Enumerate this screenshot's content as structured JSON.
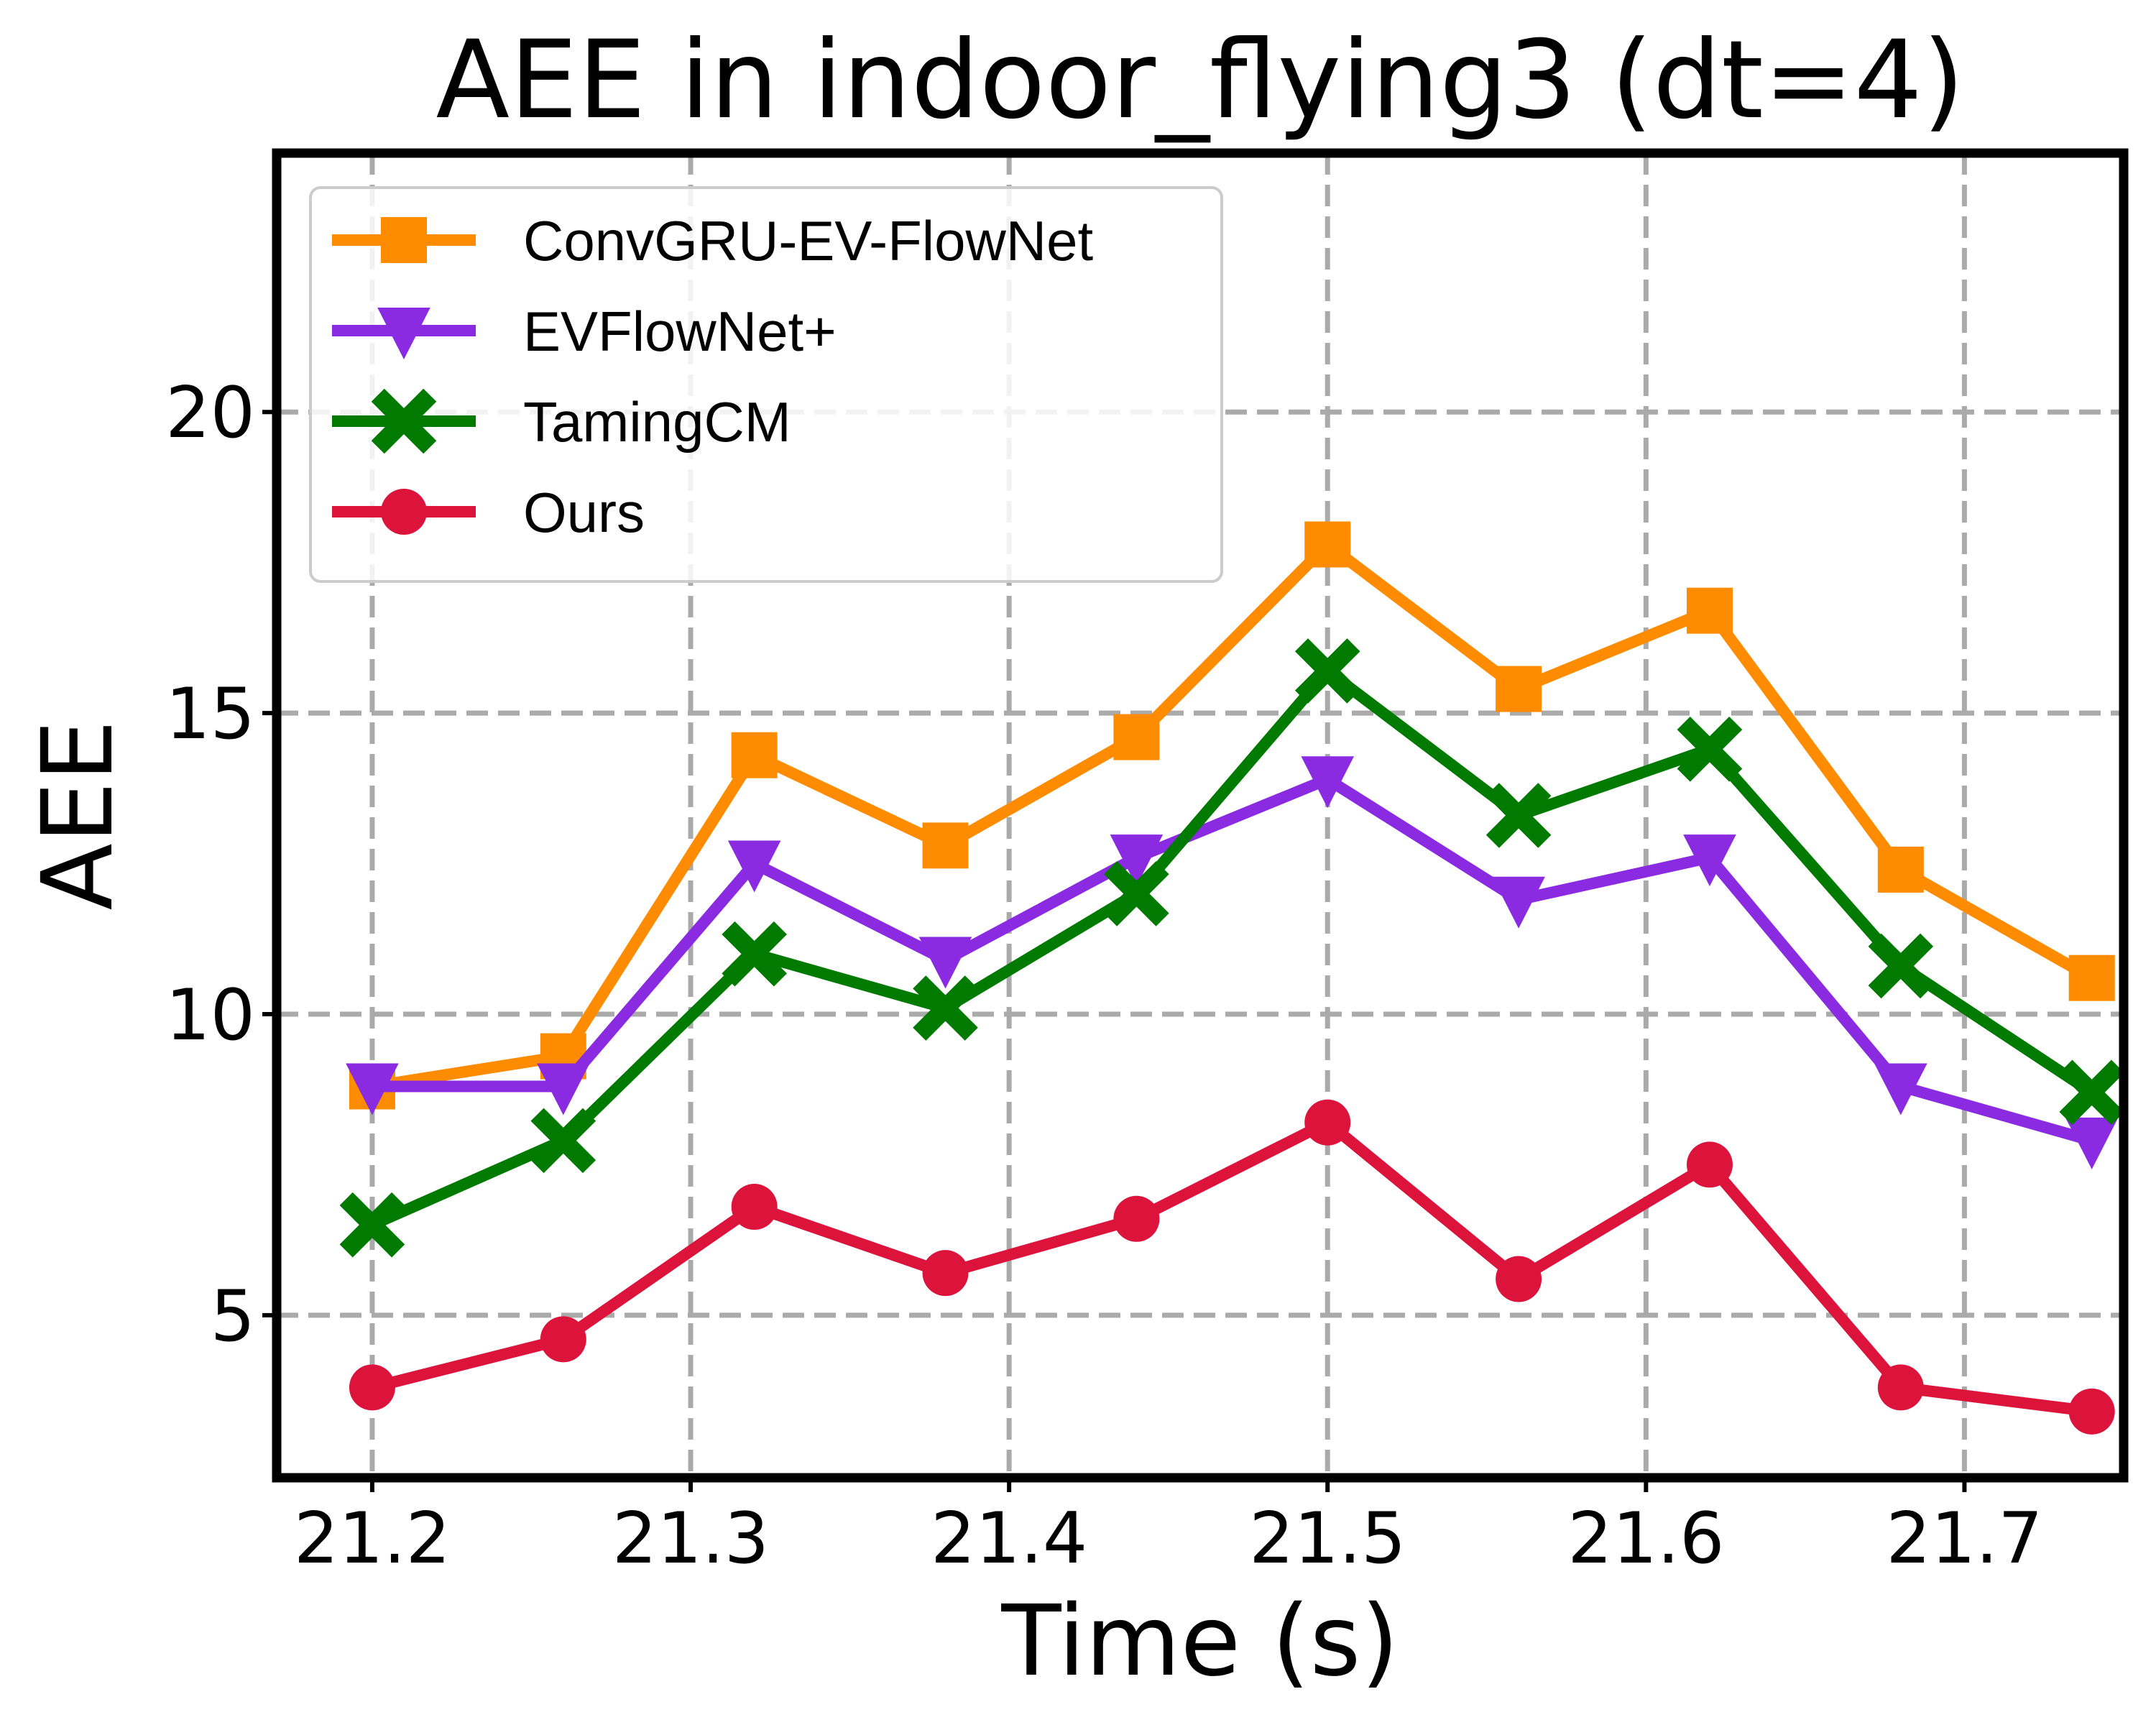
{
  "chart_data": {
    "type": "line",
    "title": "AEE in indoor_flying3 (dt=4)",
    "xlabel": "Time (s)",
    "ylabel": "AEE",
    "xlim": [
      21.17,
      21.75
    ],
    "ylim": [
      2.3,
      24.3
    ],
    "xticks": [
      21.2,
      21.3,
      21.4,
      21.5,
      21.6,
      21.7
    ],
    "xtick_labels": [
      "21.2",
      "21.3",
      "21.4",
      "21.5",
      "21.6",
      "21.7"
    ],
    "yticks": [
      5,
      10,
      15,
      20
    ],
    "ytick_labels": [
      "5",
      "10",
      "15",
      "20"
    ],
    "grid": true,
    "legend_position": "upper-left",
    "x": [
      21.2,
      21.26,
      21.32,
      21.38,
      21.44,
      21.5,
      21.56,
      21.62,
      21.68,
      21.74
    ],
    "series": [
      {
        "name": "ConvGRU-EV-FlowNet",
        "color": "#ff8c00",
        "marker": "square",
        "values": [
          8.8,
          9.3,
          14.3,
          12.8,
          14.6,
          17.8,
          15.4,
          16.7,
          12.4,
          10.6
        ]
      },
      {
        "name": "EVFlowNet+",
        "color": "#8a2be2",
        "marker": "triangle-down",
        "values": [
          8.8,
          8.8,
          12.5,
          10.9,
          12.6,
          13.9,
          11.9,
          12.6,
          8.8,
          7.9
        ]
      },
      {
        "name": "TamingCM",
        "color": "#007a00",
        "marker": "x",
        "values": [
          6.5,
          7.9,
          11.0,
          10.1,
          12.0,
          15.7,
          13.3,
          14.4,
          10.8,
          8.7
        ]
      },
      {
        "name": "Ours",
        "color": "#dc143c",
        "marker": "circle",
        "values": [
          3.8,
          4.6,
          6.8,
          5.7,
          6.6,
          8.2,
          5.6,
          7.5,
          3.8,
          3.4
        ]
      }
    ]
  }
}
